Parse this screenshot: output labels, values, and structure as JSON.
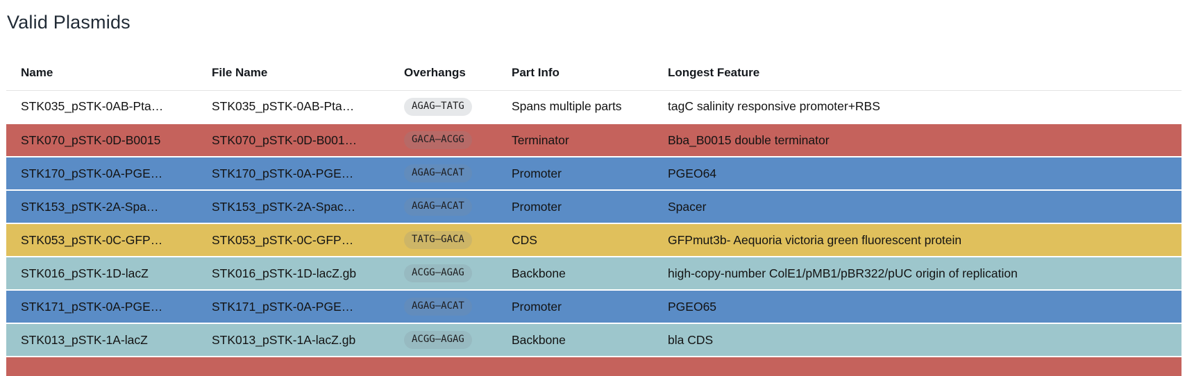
{
  "page": {
    "title": "Valid Plasmids"
  },
  "table": {
    "columns": [
      {
        "key": "name",
        "label": "Name"
      },
      {
        "key": "file_name",
        "label": "File Name"
      },
      {
        "key": "overhangs",
        "label": "Overhangs"
      },
      {
        "key": "part_info",
        "label": "Part Info"
      },
      {
        "key": "longest_feature",
        "label": "Longest Feature"
      }
    ],
    "row_colors": {
      "white": "#ffffff",
      "red": "#c5625c",
      "blue": "#5a8cc6",
      "yellow": "#e0c05c",
      "teal": "#9dc6cc"
    },
    "rows": [
      {
        "name": "STK035_pSTK-0AB-Pta…",
        "file_name": "STK035_pSTK-0AB-Pta…",
        "overhangs": "AGAG–TATG",
        "part_info": "Spans multiple parts",
        "longest_feature": "tagC salinity responsive promoter+RBS",
        "color": "white"
      },
      {
        "name": "STK070_pSTK-0D-B0015",
        "file_name": "STK070_pSTK-0D-B001…",
        "overhangs": "GACA–ACGG",
        "part_info": "Terminator",
        "longest_feature": "Bba_B0015 double terminator",
        "color": "red"
      },
      {
        "name": "STK170_pSTK-0A-PGE…",
        "file_name": "STK170_pSTK-0A-PGE…",
        "overhangs": "AGAG–ACAT",
        "part_info": "Promoter",
        "longest_feature": "PGEO64",
        "color": "blue"
      },
      {
        "name": "STK153_pSTK-2A-Spa…",
        "file_name": "STK153_pSTK-2A-Spac…",
        "overhangs": "AGAG–ACAT",
        "part_info": "Promoter",
        "longest_feature": "Spacer",
        "color": "blue"
      },
      {
        "name": "STK053_pSTK-0C-GFP…",
        "file_name": "STK053_pSTK-0C-GFP…",
        "overhangs": "TATG–GACA",
        "part_info": "CDS",
        "longest_feature": "GFPmut3b- Aequoria victoria green fluorescent protein",
        "color": "yellow"
      },
      {
        "name": "STK016_pSTK-1D-lacZ",
        "file_name": "STK016_pSTK-1D-lacZ.gb",
        "overhangs": "ACGG–AGAG",
        "part_info": "Backbone",
        "longest_feature": "high-copy-number ColE1/pMB1/pBR322/pUC origin of replication",
        "color": "teal"
      },
      {
        "name": "STK171_pSTK-0A-PGE…",
        "file_name": "STK171_pSTK-0A-PGE…",
        "overhangs": "AGAG–ACAT",
        "part_info": "Promoter",
        "longest_feature": "PGEO65",
        "color": "blue"
      },
      {
        "name": "STK013_pSTK-1A-lacZ",
        "file_name": "STK013_pSTK-1A-lacZ.gb",
        "overhangs": "ACGG–AGAG",
        "part_info": "Backbone",
        "longest_feature": "bla CDS",
        "color": "teal"
      },
      {
        "name": "",
        "file_name": "",
        "overhangs": "",
        "part_info": "",
        "longest_feature": "",
        "color": "red",
        "partial": true
      }
    ]
  }
}
